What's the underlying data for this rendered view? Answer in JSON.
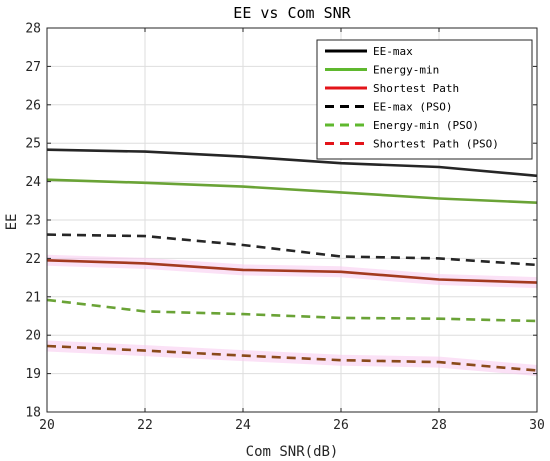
{
  "chart_data": {
    "type": "line",
    "title": "EE vs Com SNR",
    "xlabel": "Com SNR(dB)",
    "ylabel": "EE",
    "xlim": [
      20,
      30
    ],
    "ylim": [
      18,
      28
    ],
    "xticks": [
      20,
      22,
      24,
      26,
      28,
      30
    ],
    "yticks": [
      18,
      19,
      20,
      21,
      22,
      23,
      24,
      25,
      26,
      27,
      28
    ],
    "grid": true,
    "legend_position": "top-right",
    "x": [
      20,
      22,
      24,
      26,
      28,
      30
    ],
    "series": [
      {
        "name": "EE-max",
        "values": [
          24.83,
          24.78,
          24.65,
          24.48,
          24.38,
          24.15
        ],
        "color": "#262626",
        "style": "solid"
      },
      {
        "name": "Energy-min",
        "values": [
          24.05,
          23.97,
          23.87,
          23.72,
          23.56,
          23.45
        ],
        "color": "#6aa336",
        "style": "solid"
      },
      {
        "name": "Shortest Path",
        "values": [
          21.95,
          21.87,
          21.7,
          21.65,
          21.45,
          21.37
        ],
        "color": "#a33a1f",
        "style": "solid"
      },
      {
        "name": "EE-max (PSO)",
        "values": [
          22.62,
          22.58,
          22.35,
          22.05,
          22.0,
          21.83
        ],
        "color": "#262626",
        "style": "dashed"
      },
      {
        "name": "Energy-min (PSO)",
        "values": [
          20.92,
          20.62,
          20.55,
          20.45,
          20.43,
          20.37
        ],
        "color": "#6aa336",
        "style": "dashed"
      },
      {
        "name": "Shortest Path (PSO)",
        "values": [
          19.72,
          19.6,
          19.47,
          19.35,
          19.3,
          19.08
        ],
        "color": "#8a4a1a",
        "style": "dashed"
      }
    ],
    "legend_colors": [
      "#000000",
      "#5fb82e",
      "#e3141a",
      "#000000",
      "#5fb82e",
      "#e3141a"
    ]
  }
}
